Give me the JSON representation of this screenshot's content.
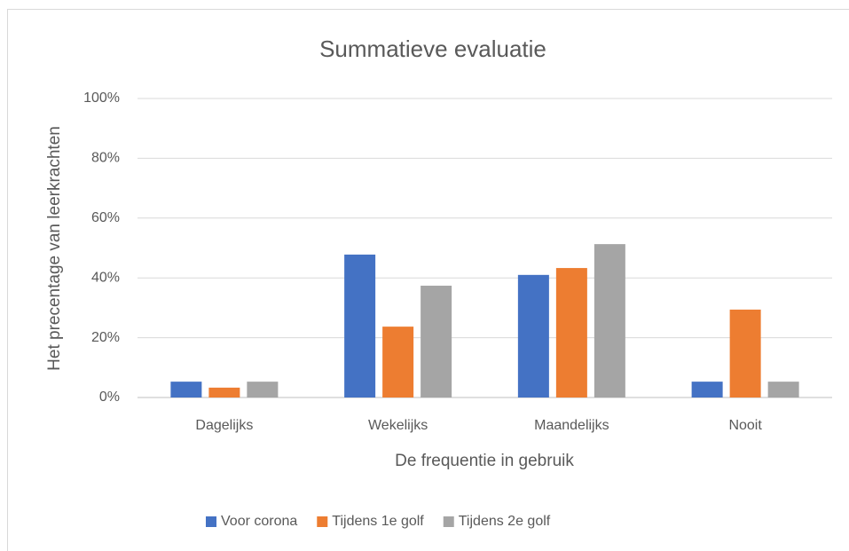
{
  "chart_data": {
    "type": "bar",
    "title": "Summatieve evaluatie",
    "x_label": "De frequentie in gebruik",
    "y_label": "Het precentage van leerkrachten",
    "categories": [
      "Dagelijks",
      "Wekelijks",
      "Maandelijks",
      "Nooit"
    ],
    "series": [
      {
        "name": "Voor corona",
        "color": "#4472c4",
        "values": [
          5.3,
          47.8,
          41,
          5.3
        ]
      },
      {
        "name": "Tijdens 1e golf",
        "color": "#ed7d31",
        "values": [
          3.3,
          23.7,
          43.3,
          29.4
        ]
      },
      {
        "name": "Tijdens 2e golf",
        "color": "#a5a5a5",
        "values": [
          5.3,
          37.4,
          51.3,
          5.3
        ]
      }
    ],
    "ylim": [
      0,
      100
    ],
    "yticks": [
      {
        "value": 0,
        "label": "0%"
      },
      {
        "value": 20,
        "label": "20%"
      },
      {
        "value": 40,
        "label": "40%"
      },
      {
        "value": 60,
        "label": "60%"
      },
      {
        "value": 80,
        "label": "80%"
      },
      {
        "value": 100,
        "label": "100%"
      }
    ],
    "grid": true,
    "legend": "bottom"
  }
}
